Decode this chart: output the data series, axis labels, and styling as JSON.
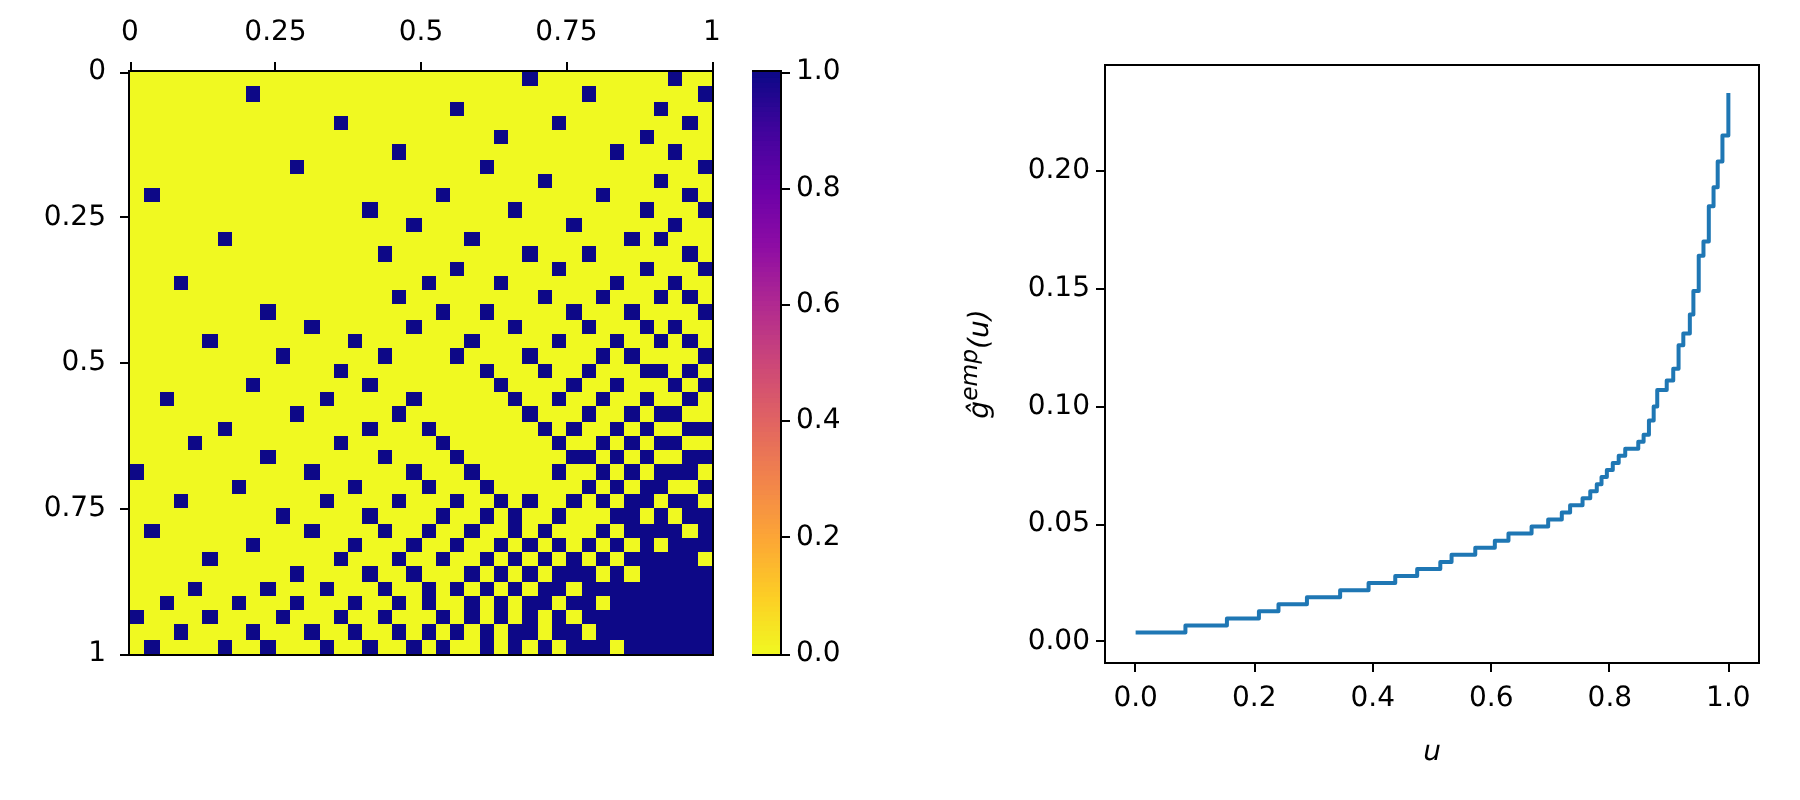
{
  "chart_data": [
    {
      "type": "heatmap",
      "xlim": [
        0,
        1
      ],
      "xticks": [
        0,
        0.25,
        0.5,
        0.75,
        1
      ],
      "ylim": [
        1,
        0
      ],
      "yticks": [
        0,
        0.25,
        0.5,
        0.75,
        1
      ],
      "clim": [
        0,
        1
      ],
      "cticks": [
        {
          "value": 0,
          "label": "0.0"
        },
        0.2,
        0.4,
        0.6,
        0.8,
        {
          "value": 1,
          "label": "1.0"
        }
      ],
      "cells": [
        [
          0,
          0,
          0,
          0,
          0,
          0,
          0,
          0,
          0,
          0,
          0,
          0,
          0,
          0,
          0,
          0,
          0,
          0,
          0,
          0,
          0,
          0,
          0,
          0,
          0,
          0,
          0,
          1,
          0,
          0,
          0,
          0,
          0,
          0,
          0,
          0,
          0,
          1,
          0,
          0
        ],
        [
          0,
          0,
          0,
          0,
          0,
          0,
          0,
          0,
          1,
          0,
          0,
          0,
          0,
          0,
          0,
          0,
          0,
          0,
          0,
          0,
          0,
          0,
          0,
          0,
          0,
          0,
          0,
          0,
          0,
          0,
          0,
          1,
          0,
          0,
          0,
          0,
          0,
          0,
          0,
          1
        ],
        [
          0,
          0,
          0,
          0,
          0,
          0,
          0,
          0,
          0,
          0,
          0,
          0,
          0,
          0,
          0,
          0,
          0,
          0,
          0,
          0,
          0,
          0,
          1,
          0,
          0,
          0,
          0,
          0,
          0,
          0,
          0,
          0,
          0,
          0,
          0,
          0,
          1,
          0,
          0,
          0
        ],
        [
          0,
          0,
          0,
          0,
          0,
          0,
          0,
          0,
          0,
          0,
          0,
          0,
          0,
          0,
          1,
          0,
          0,
          0,
          0,
          0,
          0,
          0,
          0,
          0,
          0,
          0,
          0,
          0,
          0,
          1,
          0,
          0,
          0,
          0,
          0,
          0,
          0,
          0,
          1,
          0
        ],
        [
          0,
          0,
          0,
          0,
          0,
          0,
          0,
          0,
          0,
          0,
          0,
          0,
          0,
          0,
          0,
          0,
          0,
          0,
          0,
          0,
          0,
          0,
          0,
          0,
          0,
          1,
          0,
          0,
          0,
          0,
          0,
          0,
          0,
          0,
          0,
          1,
          0,
          0,
          0,
          0
        ],
        [
          0,
          0,
          0,
          0,
          0,
          0,
          0,
          0,
          0,
          0,
          0,
          0,
          0,
          0,
          0,
          0,
          0,
          0,
          1,
          0,
          0,
          0,
          0,
          0,
          0,
          0,
          0,
          0,
          0,
          0,
          0,
          0,
          0,
          1,
          0,
          0,
          0,
          1,
          0,
          0
        ],
        [
          0,
          0,
          0,
          0,
          0,
          0,
          0,
          0,
          0,
          0,
          0,
          1,
          0,
          0,
          0,
          0,
          0,
          0,
          0,
          0,
          0,
          0,
          0,
          0,
          1,
          0,
          0,
          0,
          0,
          0,
          0,
          0,
          0,
          0,
          0,
          0,
          0,
          0,
          0,
          1
        ],
        [
          0,
          0,
          0,
          0,
          0,
          0,
          0,
          0,
          0,
          0,
          0,
          0,
          0,
          0,
          0,
          0,
          0,
          0,
          0,
          0,
          0,
          0,
          0,
          0,
          0,
          0,
          0,
          0,
          1,
          0,
          0,
          0,
          0,
          0,
          0,
          0,
          1,
          0,
          0,
          0
        ],
        [
          0,
          1,
          0,
          0,
          0,
          0,
          0,
          0,
          0,
          0,
          0,
          0,
          0,
          0,
          0,
          0,
          0,
          0,
          0,
          0,
          0,
          1,
          0,
          0,
          0,
          0,
          0,
          0,
          0,
          0,
          0,
          0,
          1,
          0,
          0,
          0,
          0,
          0,
          1,
          0
        ],
        [
          0,
          0,
          0,
          0,
          0,
          0,
          0,
          0,
          0,
          0,
          0,
          0,
          0,
          0,
          0,
          0,
          1,
          0,
          0,
          0,
          0,
          0,
          0,
          0,
          0,
          0,
          1,
          0,
          0,
          0,
          0,
          0,
          0,
          0,
          0,
          1,
          0,
          0,
          0,
          1
        ],
        [
          0,
          0,
          0,
          0,
          0,
          0,
          0,
          0,
          0,
          0,
          0,
          0,
          0,
          0,
          0,
          0,
          0,
          0,
          0,
          1,
          0,
          0,
          0,
          0,
          0,
          0,
          0,
          0,
          0,
          0,
          1,
          0,
          0,
          0,
          0,
          0,
          0,
          1,
          0,
          0
        ],
        [
          0,
          0,
          0,
          0,
          0,
          0,
          1,
          0,
          0,
          0,
          0,
          0,
          0,
          0,
          0,
          0,
          0,
          0,
          0,
          0,
          0,
          0,
          0,
          1,
          0,
          0,
          0,
          0,
          0,
          0,
          0,
          0,
          0,
          0,
          1,
          0,
          1,
          0,
          0,
          0
        ],
        [
          0,
          0,
          0,
          0,
          0,
          0,
          0,
          0,
          0,
          0,
          0,
          0,
          0,
          0,
          0,
          0,
          0,
          1,
          0,
          0,
          0,
          0,
          0,
          0,
          0,
          0,
          0,
          1,
          0,
          0,
          0,
          1,
          0,
          0,
          0,
          0,
          0,
          0,
          1,
          0
        ],
        [
          0,
          0,
          0,
          0,
          0,
          0,
          0,
          0,
          0,
          0,
          0,
          0,
          0,
          0,
          0,
          0,
          0,
          0,
          0,
          0,
          0,
          0,
          1,
          0,
          0,
          0,
          0,
          0,
          0,
          1,
          0,
          0,
          0,
          0,
          0,
          1,
          0,
          0,
          0,
          1
        ],
        [
          0,
          0,
          0,
          1,
          0,
          0,
          0,
          0,
          0,
          0,
          0,
          0,
          0,
          0,
          0,
          0,
          0,
          0,
          0,
          0,
          1,
          0,
          0,
          0,
          0,
          1,
          0,
          0,
          0,
          0,
          0,
          0,
          0,
          1,
          0,
          0,
          0,
          1,
          0,
          0
        ],
        [
          0,
          0,
          0,
          0,
          0,
          0,
          0,
          0,
          0,
          0,
          0,
          0,
          0,
          0,
          0,
          0,
          0,
          0,
          1,
          0,
          0,
          0,
          0,
          0,
          0,
          0,
          0,
          0,
          1,
          0,
          0,
          0,
          1,
          0,
          0,
          0,
          1,
          0,
          1,
          0
        ],
        [
          0,
          0,
          0,
          0,
          0,
          0,
          0,
          0,
          0,
          1,
          0,
          0,
          0,
          0,
          0,
          0,
          0,
          0,
          0,
          0,
          0,
          1,
          0,
          0,
          1,
          0,
          0,
          0,
          0,
          0,
          1,
          0,
          0,
          0,
          1,
          0,
          0,
          0,
          0,
          1
        ],
        [
          0,
          0,
          0,
          0,
          0,
          0,
          0,
          0,
          0,
          0,
          0,
          0,
          1,
          0,
          0,
          0,
          0,
          0,
          0,
          1,
          0,
          0,
          0,
          0,
          0,
          0,
          1,
          0,
          0,
          0,
          0,
          1,
          0,
          0,
          0,
          1,
          0,
          1,
          0,
          0
        ],
        [
          0,
          0,
          0,
          0,
          0,
          1,
          0,
          0,
          0,
          0,
          0,
          0,
          0,
          0,
          0,
          1,
          0,
          0,
          0,
          0,
          0,
          0,
          0,
          1,
          0,
          0,
          0,
          0,
          0,
          1,
          0,
          0,
          0,
          1,
          0,
          0,
          1,
          0,
          1,
          0
        ],
        [
          0,
          0,
          0,
          0,
          0,
          0,
          0,
          0,
          0,
          0,
          1,
          0,
          0,
          0,
          0,
          0,
          0,
          1,
          0,
          0,
          0,
          0,
          1,
          0,
          0,
          0,
          0,
          1,
          0,
          0,
          0,
          0,
          1,
          0,
          1,
          0,
          0,
          0,
          0,
          1
        ],
        [
          0,
          0,
          0,
          0,
          0,
          0,
          0,
          0,
          0,
          0,
          0,
          0,
          0,
          0,
          1,
          0,
          0,
          0,
          0,
          0,
          0,
          0,
          0,
          0,
          1,
          0,
          0,
          0,
          1,
          0,
          0,
          1,
          0,
          0,
          0,
          1,
          1,
          0,
          1,
          0
        ],
        [
          0,
          0,
          0,
          0,
          0,
          0,
          0,
          0,
          1,
          0,
          0,
          0,
          0,
          0,
          0,
          0,
          1,
          0,
          0,
          0,
          0,
          0,
          0,
          0,
          0,
          1,
          0,
          0,
          0,
          0,
          1,
          0,
          0,
          1,
          0,
          0,
          0,
          1,
          0,
          1
        ],
        [
          0,
          0,
          1,
          0,
          0,
          0,
          0,
          0,
          0,
          0,
          0,
          0,
          0,
          1,
          0,
          0,
          0,
          0,
          0,
          1,
          0,
          0,
          0,
          0,
          0,
          0,
          1,
          0,
          0,
          1,
          0,
          0,
          1,
          0,
          0,
          1,
          0,
          0,
          1,
          0
        ],
        [
          0,
          0,
          0,
          0,
          0,
          0,
          0,
          0,
          0,
          0,
          0,
          1,
          0,
          0,
          0,
          0,
          0,
          0,
          1,
          0,
          0,
          0,
          0,
          0,
          0,
          0,
          0,
          1,
          0,
          0,
          0,
          1,
          0,
          0,
          1,
          0,
          1,
          1,
          0,
          0
        ],
        [
          0,
          0,
          0,
          0,
          0,
          0,
          1,
          0,
          0,
          0,
          0,
          0,
          0,
          0,
          0,
          0,
          1,
          0,
          0,
          0,
          1,
          0,
          0,
          0,
          0,
          0,
          0,
          0,
          1,
          0,
          1,
          0,
          0,
          1,
          0,
          1,
          0,
          0,
          1,
          1
        ],
        [
          0,
          0,
          0,
          0,
          1,
          0,
          0,
          0,
          0,
          0,
          0,
          0,
          0,
          0,
          1,
          0,
          0,
          0,
          0,
          0,
          0,
          1,
          0,
          0,
          0,
          0,
          0,
          0,
          0,
          1,
          0,
          0,
          1,
          0,
          1,
          0,
          1,
          1,
          0,
          0
        ],
        [
          0,
          0,
          0,
          0,
          0,
          0,
          0,
          0,
          0,
          1,
          0,
          0,
          0,
          0,
          0,
          0,
          0,
          1,
          0,
          0,
          0,
          0,
          1,
          0,
          0,
          0,
          0,
          0,
          0,
          0,
          1,
          1,
          0,
          1,
          0,
          1,
          0,
          0,
          1,
          1
        ],
        [
          1,
          0,
          0,
          0,
          0,
          0,
          0,
          0,
          0,
          0,
          0,
          0,
          1,
          0,
          0,
          0,
          0,
          0,
          0,
          1,
          0,
          0,
          0,
          1,
          0,
          0,
          0,
          0,
          0,
          1,
          0,
          0,
          1,
          0,
          1,
          0,
          1,
          1,
          1,
          0
        ],
        [
          0,
          0,
          0,
          0,
          0,
          0,
          0,
          1,
          0,
          0,
          0,
          0,
          0,
          0,
          0,
          1,
          0,
          0,
          0,
          0,
          1,
          0,
          0,
          0,
          1,
          0,
          0,
          0,
          0,
          0,
          0,
          1,
          0,
          1,
          0,
          1,
          1,
          0,
          0,
          1
        ],
        [
          0,
          0,
          0,
          1,
          0,
          0,
          0,
          0,
          0,
          0,
          0,
          0,
          0,
          1,
          0,
          0,
          0,
          0,
          1,
          0,
          0,
          0,
          1,
          0,
          0,
          1,
          0,
          1,
          0,
          0,
          1,
          0,
          1,
          0,
          1,
          1,
          0,
          1,
          1,
          0
        ],
        [
          0,
          0,
          0,
          0,
          0,
          0,
          0,
          0,
          0,
          0,
          1,
          0,
          0,
          0,
          0,
          0,
          1,
          0,
          0,
          0,
          0,
          1,
          0,
          0,
          1,
          0,
          1,
          0,
          0,
          1,
          0,
          0,
          0,
          1,
          1,
          0,
          1,
          0,
          1,
          1
        ],
        [
          0,
          1,
          0,
          0,
          0,
          0,
          0,
          0,
          0,
          0,
          0,
          0,
          1,
          0,
          0,
          0,
          0,
          1,
          0,
          0,
          1,
          0,
          0,
          1,
          0,
          0,
          1,
          0,
          1,
          0,
          0,
          0,
          1,
          0,
          1,
          1,
          1,
          1,
          0,
          1
        ],
        [
          0,
          0,
          0,
          0,
          0,
          0,
          0,
          0,
          1,
          0,
          0,
          0,
          0,
          0,
          0,
          1,
          0,
          0,
          0,
          1,
          0,
          0,
          1,
          0,
          0,
          1,
          0,
          1,
          0,
          1,
          0,
          1,
          0,
          1,
          0,
          1,
          0,
          1,
          1,
          1
        ],
        [
          0,
          0,
          0,
          0,
          0,
          1,
          0,
          0,
          0,
          0,
          0,
          0,
          0,
          0,
          1,
          0,
          0,
          0,
          1,
          0,
          0,
          1,
          0,
          0,
          1,
          0,
          1,
          0,
          1,
          0,
          1,
          0,
          1,
          0,
          1,
          1,
          1,
          1,
          1,
          0
        ],
        [
          0,
          0,
          0,
          0,
          0,
          0,
          0,
          0,
          0,
          0,
          0,
          1,
          0,
          0,
          0,
          0,
          1,
          0,
          0,
          1,
          0,
          0,
          0,
          1,
          0,
          1,
          0,
          1,
          0,
          1,
          1,
          1,
          0,
          1,
          0,
          1,
          1,
          1,
          1,
          1
        ],
        [
          0,
          0,
          0,
          0,
          1,
          0,
          0,
          0,
          0,
          1,
          0,
          0,
          0,
          1,
          0,
          0,
          0,
          1,
          0,
          0,
          1,
          0,
          1,
          0,
          1,
          0,
          1,
          0,
          1,
          1,
          0,
          1,
          1,
          1,
          1,
          1,
          1,
          1,
          1,
          1
        ],
        [
          0,
          0,
          1,
          0,
          0,
          0,
          0,
          1,
          0,
          0,
          0,
          1,
          0,
          0,
          0,
          1,
          0,
          0,
          1,
          0,
          1,
          0,
          0,
          1,
          0,
          1,
          0,
          1,
          1,
          0,
          1,
          1,
          0,
          1,
          1,
          1,
          1,
          1,
          1,
          1
        ],
        [
          1,
          0,
          0,
          0,
          0,
          1,
          0,
          0,
          0,
          0,
          1,
          0,
          0,
          0,
          1,
          0,
          0,
          1,
          0,
          0,
          0,
          1,
          0,
          1,
          0,
          1,
          0,
          1,
          0,
          1,
          0,
          1,
          1,
          1,
          1,
          1,
          1,
          1,
          1,
          1
        ],
        [
          0,
          0,
          0,
          1,
          0,
          0,
          0,
          0,
          1,
          0,
          0,
          0,
          1,
          0,
          0,
          1,
          0,
          0,
          1,
          0,
          1,
          0,
          1,
          0,
          1,
          0,
          1,
          1,
          0,
          1,
          1,
          0,
          1,
          1,
          1,
          1,
          1,
          1,
          1,
          1
        ],
        [
          0,
          1,
          0,
          0,
          0,
          0,
          1,
          0,
          0,
          1,
          0,
          0,
          0,
          1,
          0,
          0,
          1,
          0,
          0,
          1,
          0,
          1,
          0,
          0,
          1,
          0,
          1,
          0,
          1,
          0,
          1,
          1,
          1,
          0,
          1,
          1,
          1,
          1,
          1,
          1
        ]
      ]
    },
    {
      "type": "step",
      "x": [
        0,
        0.084,
        0.154,
        0.208,
        0.241,
        0.289,
        0.345,
        0.393,
        0.438,
        0.475,
        0.514,
        0.533,
        0.573,
        0.606,
        0.629,
        0.668,
        0.696,
        0.719,
        0.733,
        0.754,
        0.767,
        0.778,
        0.786,
        0.795,
        0.805,
        0.815,
        0.826,
        0.848,
        0.857,
        0.866,
        0.874,
        0.88,
        0.896,
        0.907,
        0.916,
        0.924,
        0.935,
        0.941,
        0.95,
        0.958,
        0.967,
        0.975,
        0.982,
        0.99,
        1.0
      ],
      "values": [
        0.004,
        0.007,
        0.01,
        0.013,
        0.016,
        0.019,
        0.022,
        0.025,
        0.028,
        0.031,
        0.034,
        0.037,
        0.04,
        0.043,
        0.046,
        0.049,
        0.052,
        0.055,
        0.058,
        0.061,
        0.064,
        0.067,
        0.07,
        0.073,
        0.076,
        0.079,
        0.082,
        0.085,
        0.088,
        0.094,
        0.1,
        0.107,
        0.111,
        0.116,
        0.126,
        0.131,
        0.139,
        0.149,
        0.164,
        0.17,
        0.185,
        0.193,
        0.204,
        0.215,
        0.233
      ],
      "color": "#1f77b4",
      "xlim": [
        -0.05,
        1.05
      ],
      "xticks": [
        {
          "value": 0,
          "label": "0.0"
        },
        0.2,
        0.4,
        0.6,
        0.8,
        {
          "value": 1,
          "label": "1.0"
        }
      ],
      "ylim": [
        -0.0085,
        0.2445
      ],
      "yticks": [
        {
          "value": 0,
          "label": "0.00"
        },
        0.05,
        {
          "value": 0.1,
          "label": "0.10"
        },
        0.15,
        {
          "value": 0.2,
          "label": "0.20"
        }
      ],
      "xlabel": "u",
      "ylabel": "ĝ$^{emp}$(u)"
    }
  ]
}
